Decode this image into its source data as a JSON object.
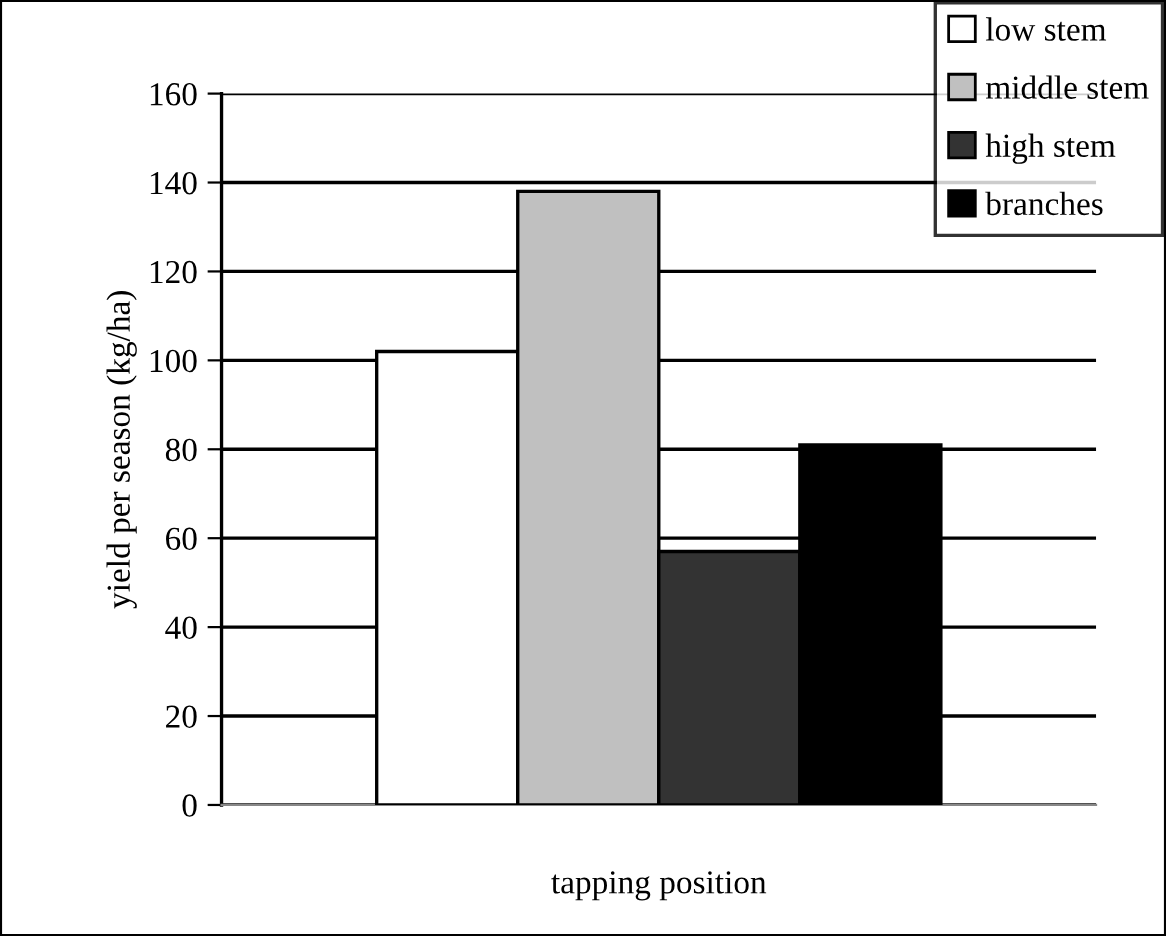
{
  "chart_data": {
    "type": "bar",
    "xlabel": "tapping position",
    "ylabel": "yield per season (kg/ha)",
    "categories": [
      null
    ],
    "series": [
      {
        "name": "low stem",
        "color": "#ffffff",
        "values": [
          102
        ]
      },
      {
        "name": "middle stem",
        "color": "#c0c0c0",
        "values": [
          138
        ]
      },
      {
        "name": "high stem",
        "color": "#333333",
        "values": [
          57
        ]
      },
      {
        "name": "branches",
        "color": "#000000",
        "values": [
          81
        ]
      }
    ],
    "ylim": [
      0,
      160
    ],
    "yticks": [
      0,
      20,
      40,
      60,
      80,
      100,
      120,
      140,
      160
    ],
    "grid": "y",
    "legend": "top right"
  }
}
